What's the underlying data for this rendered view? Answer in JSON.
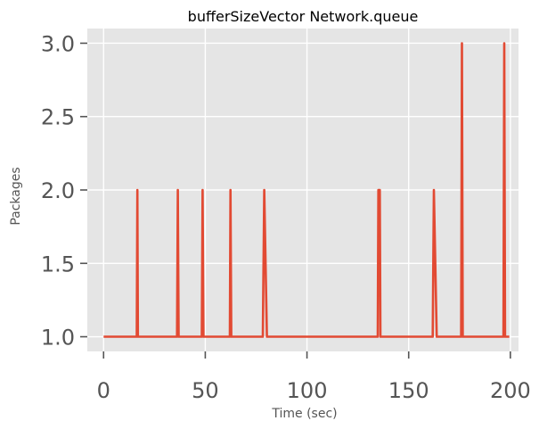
{
  "chart_data": {
    "type": "line",
    "title": "bufferSizeVector Network.queue",
    "xlabel": "Time (sec)",
    "ylabel": "Packages",
    "xlim": [
      -8,
      204
    ],
    "ylim": [
      0.9,
      3.1
    ],
    "xticks": [
      0,
      50,
      100,
      150,
      200
    ],
    "yticks": [
      1.0,
      1.5,
      2.0,
      2.5,
      3.0
    ],
    "xtick_labels": [
      "0",
      "50",
      "100",
      "150",
      "200"
    ],
    "ytick_labels": [
      "1.0",
      "1.5",
      "2.0",
      "2.5",
      "3.0"
    ],
    "grid": true,
    "background": "#e5e5e5",
    "gridColor": "#ffffff",
    "seriesColor": "#e24a33",
    "series": [
      {
        "x": [
          0,
          16.3,
          16.6,
          16.9,
          36.1,
          36.5,
          36.9,
          48.3,
          48.7,
          49.1,
          62.1,
          62.4,
          62.8,
          78.3,
          79.0,
          80.3,
          134.8,
          135.1,
          135.8,
          136.1,
          161.8,
          162.4,
          163.8,
          175.8,
          176.2,
          176.6,
          196.6,
          197.0,
          197.4,
          199.5
        ],
        "y": [
          1,
          1,
          2,
          1,
          1,
          2,
          1,
          1,
          2,
          1,
          1,
          2,
          1,
          1,
          2,
          1,
          1,
          2,
          2,
          1,
          1,
          2,
          1,
          1,
          3,
          1,
          1,
          3,
          1,
          1
        ]
      }
    ]
  }
}
